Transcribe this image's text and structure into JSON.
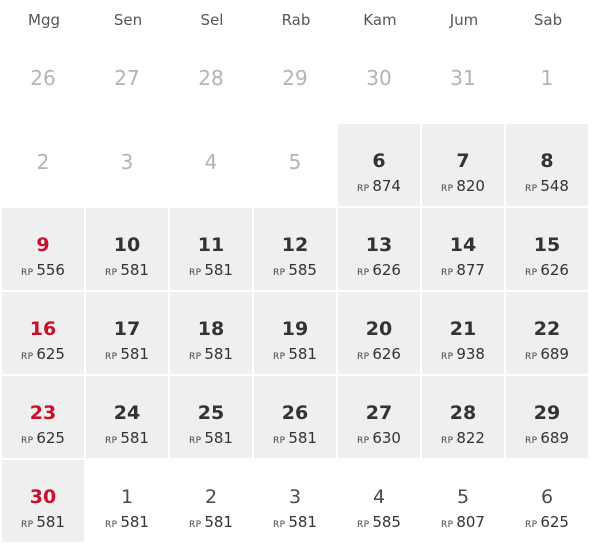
{
  "weekdays": [
    "Mgg",
    "Sen",
    "Sel",
    "Rab",
    "Kam",
    "Jum",
    "Sab"
  ],
  "currency": "RP",
  "weeks": [
    [
      {
        "day": "26",
        "state": "outside"
      },
      {
        "day": "27",
        "state": "outside"
      },
      {
        "day": "28",
        "state": "outside"
      },
      {
        "day": "29",
        "state": "outside"
      },
      {
        "day": "30",
        "state": "outside"
      },
      {
        "day": "31",
        "state": "outside"
      },
      {
        "day": "1",
        "state": "outside"
      }
    ],
    [
      {
        "day": "2",
        "state": "outside"
      },
      {
        "day": "3",
        "state": "outside"
      },
      {
        "day": "4",
        "state": "outside"
      },
      {
        "day": "5",
        "state": "outside"
      },
      {
        "day": "6",
        "state": "available",
        "price": "874"
      },
      {
        "day": "7",
        "state": "available",
        "price": "820"
      },
      {
        "day": "8",
        "state": "available",
        "price": "548"
      }
    ],
    [
      {
        "day": "9",
        "state": "available",
        "price": "556",
        "sunday": true
      },
      {
        "day": "10",
        "state": "available",
        "price": "581"
      },
      {
        "day": "11",
        "state": "available",
        "price": "581"
      },
      {
        "day": "12",
        "state": "available",
        "price": "585"
      },
      {
        "day": "13",
        "state": "available",
        "price": "626"
      },
      {
        "day": "14",
        "state": "available",
        "price": "877"
      },
      {
        "day": "15",
        "state": "available",
        "price": "626"
      }
    ],
    [
      {
        "day": "16",
        "state": "available",
        "price": "625",
        "sunday": true
      },
      {
        "day": "17",
        "state": "available",
        "price": "581"
      },
      {
        "day": "18",
        "state": "available",
        "price": "581"
      },
      {
        "day": "19",
        "state": "available",
        "price": "581"
      },
      {
        "day": "20",
        "state": "available",
        "price": "626"
      },
      {
        "day": "21",
        "state": "available",
        "price": "938"
      },
      {
        "day": "22",
        "state": "available",
        "price": "689"
      }
    ],
    [
      {
        "day": "23",
        "state": "available",
        "price": "625",
        "sunday": true
      },
      {
        "day": "24",
        "state": "available",
        "price": "581"
      },
      {
        "day": "25",
        "state": "available",
        "price": "581"
      },
      {
        "day": "26",
        "state": "available",
        "price": "581"
      },
      {
        "day": "27",
        "state": "available",
        "price": "630"
      },
      {
        "day": "28",
        "state": "available",
        "price": "822"
      },
      {
        "day": "29",
        "state": "available",
        "price": "689"
      }
    ],
    [
      {
        "day": "30",
        "state": "available",
        "price": "581",
        "sunday": true
      },
      {
        "day": "1",
        "state": "next",
        "price": "581"
      },
      {
        "day": "2",
        "state": "next",
        "price": "581"
      },
      {
        "day": "3",
        "state": "next",
        "price": "581"
      },
      {
        "day": "4",
        "state": "next",
        "price": "585"
      },
      {
        "day": "5",
        "state": "next",
        "price": "807"
      },
      {
        "day": "6",
        "state": "next",
        "price": "625"
      }
    ]
  ],
  "colors": {
    "available_bg": "#efefef",
    "sunday_accent": "#c8102e",
    "muted_text": "#b3b3b3"
  }
}
